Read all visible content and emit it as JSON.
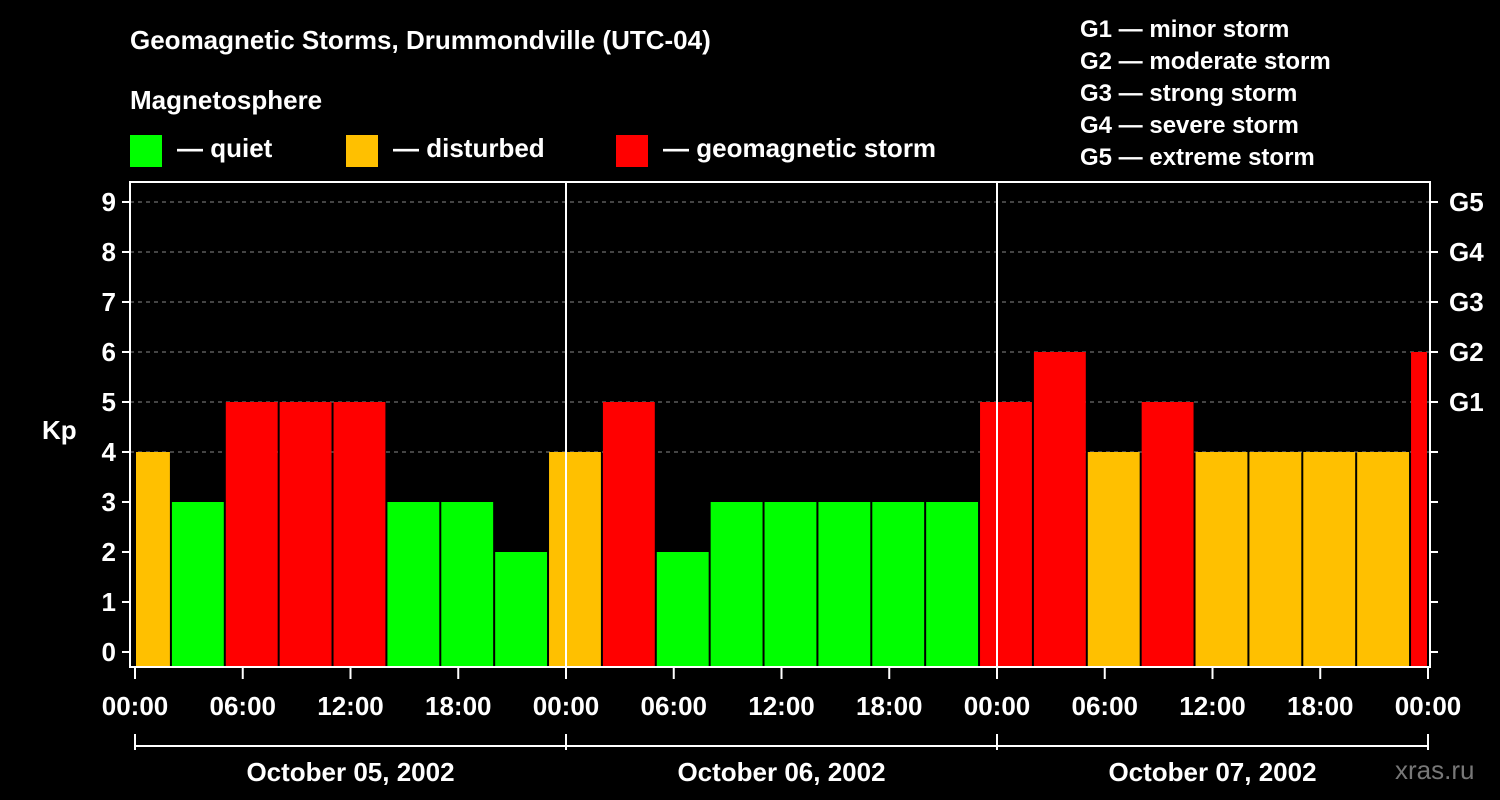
{
  "title": "Geomagnetic Storms, Drummondville (UTC-04)",
  "legend_heading": "Magnetosphere",
  "legend": [
    {
      "label": "— quiet",
      "color": "#00ff00"
    },
    {
      "label": "— disturbed",
      "color": "#ffc000"
    },
    {
      "label": "— geomagnetic storm",
      "color": "#ff0000"
    }
  ],
  "g_scale": [
    "G1 — minor storm",
    "G2 — moderate storm",
    "G3 — strong storm",
    "G4 — severe storm",
    "G5 — extreme storm"
  ],
  "watermark": "xras.ru",
  "colors": {
    "quiet": "#00ff00",
    "disturbed": "#ffc000",
    "storm": "#ff0000",
    "grid": "#888888",
    "axis": "#ffffff"
  },
  "chart_data": {
    "type": "bar",
    "ylabel": "Kp",
    "ylim": [
      0,
      9
    ],
    "yticks": [
      "0",
      "1",
      "2",
      "3",
      "4",
      "5",
      "6",
      "7",
      "8",
      "9"
    ],
    "g_ticks": [
      {
        "label": "G1",
        "kp": 5
      },
      {
        "label": "G2",
        "kp": 6
      },
      {
        "label": "G3",
        "kp": 7
      },
      {
        "label": "G4",
        "kp": 8
      },
      {
        "label": "G5",
        "kp": 9
      }
    ],
    "xlim_hours": [
      0,
      72
    ],
    "grid": "horizontal dashed",
    "xticks": [
      "00:00",
      "06:00",
      "12:00",
      "18:00",
      "00:00",
      "06:00",
      "12:00",
      "18:00",
      "00:00",
      "06:00",
      "12:00",
      "18:00",
      "00:00"
    ],
    "days": [
      "October 05, 2002",
      "October 06, 2002",
      "October 07, 2002"
    ],
    "bars": [
      {
        "start": "2002-10-05 00:00",
        "end": "2002-10-05 02:00",
        "kp": 4,
        "level": "disturbed"
      },
      {
        "start": "2002-10-05 02:00",
        "end": "2002-10-05 05:00",
        "kp": 3,
        "level": "quiet"
      },
      {
        "start": "2002-10-05 05:00",
        "end": "2002-10-05 08:00",
        "kp": 5,
        "level": "storm"
      },
      {
        "start": "2002-10-05 08:00",
        "end": "2002-10-05 11:00",
        "kp": 5,
        "level": "storm"
      },
      {
        "start": "2002-10-05 11:00",
        "end": "2002-10-05 14:00",
        "kp": 5,
        "level": "storm"
      },
      {
        "start": "2002-10-05 14:00",
        "end": "2002-10-05 17:00",
        "kp": 3,
        "level": "quiet"
      },
      {
        "start": "2002-10-05 17:00",
        "end": "2002-10-05 20:00",
        "kp": 3,
        "level": "quiet"
      },
      {
        "start": "2002-10-05 20:00",
        "end": "2002-10-05 23:00",
        "kp": 2,
        "level": "quiet"
      },
      {
        "start": "2002-10-05 23:00",
        "end": "2002-10-06 02:00",
        "kp": 4,
        "level": "disturbed"
      },
      {
        "start": "2002-10-06 02:00",
        "end": "2002-10-06 05:00",
        "kp": 5,
        "level": "storm"
      },
      {
        "start": "2002-10-06 05:00",
        "end": "2002-10-06 08:00",
        "kp": 2,
        "level": "quiet"
      },
      {
        "start": "2002-10-06 08:00",
        "end": "2002-10-06 11:00",
        "kp": 3,
        "level": "quiet"
      },
      {
        "start": "2002-10-06 11:00",
        "end": "2002-10-06 14:00",
        "kp": 3,
        "level": "quiet"
      },
      {
        "start": "2002-10-06 14:00",
        "end": "2002-10-06 17:00",
        "kp": 3,
        "level": "quiet"
      },
      {
        "start": "2002-10-06 17:00",
        "end": "2002-10-06 20:00",
        "kp": 3,
        "level": "quiet"
      },
      {
        "start": "2002-10-06 20:00",
        "end": "2002-10-06 23:00",
        "kp": 3,
        "level": "quiet"
      },
      {
        "start": "2002-10-06 23:00",
        "end": "2002-10-07 02:00",
        "kp": 5,
        "level": "storm"
      },
      {
        "start": "2002-10-07 02:00",
        "end": "2002-10-07 05:00",
        "kp": 6,
        "level": "storm"
      },
      {
        "start": "2002-10-07 05:00",
        "end": "2002-10-07 08:00",
        "kp": 4,
        "level": "disturbed"
      },
      {
        "start": "2002-10-07 08:00",
        "end": "2002-10-07 11:00",
        "kp": 5,
        "level": "storm"
      },
      {
        "start": "2002-10-07 11:00",
        "end": "2002-10-07 14:00",
        "kp": 4,
        "level": "disturbed"
      },
      {
        "start": "2002-10-07 14:00",
        "end": "2002-10-07 17:00",
        "kp": 4,
        "level": "disturbed"
      },
      {
        "start": "2002-10-07 17:00",
        "end": "2002-10-07 20:00",
        "kp": 4,
        "level": "disturbed"
      },
      {
        "start": "2002-10-07 20:00",
        "end": "2002-10-07 23:00",
        "kp": 4,
        "level": "disturbed"
      },
      {
        "start": "2002-10-07 23:00",
        "end": "2002-10-08 00:00",
        "kp": 6,
        "level": "storm"
      }
    ]
  }
}
